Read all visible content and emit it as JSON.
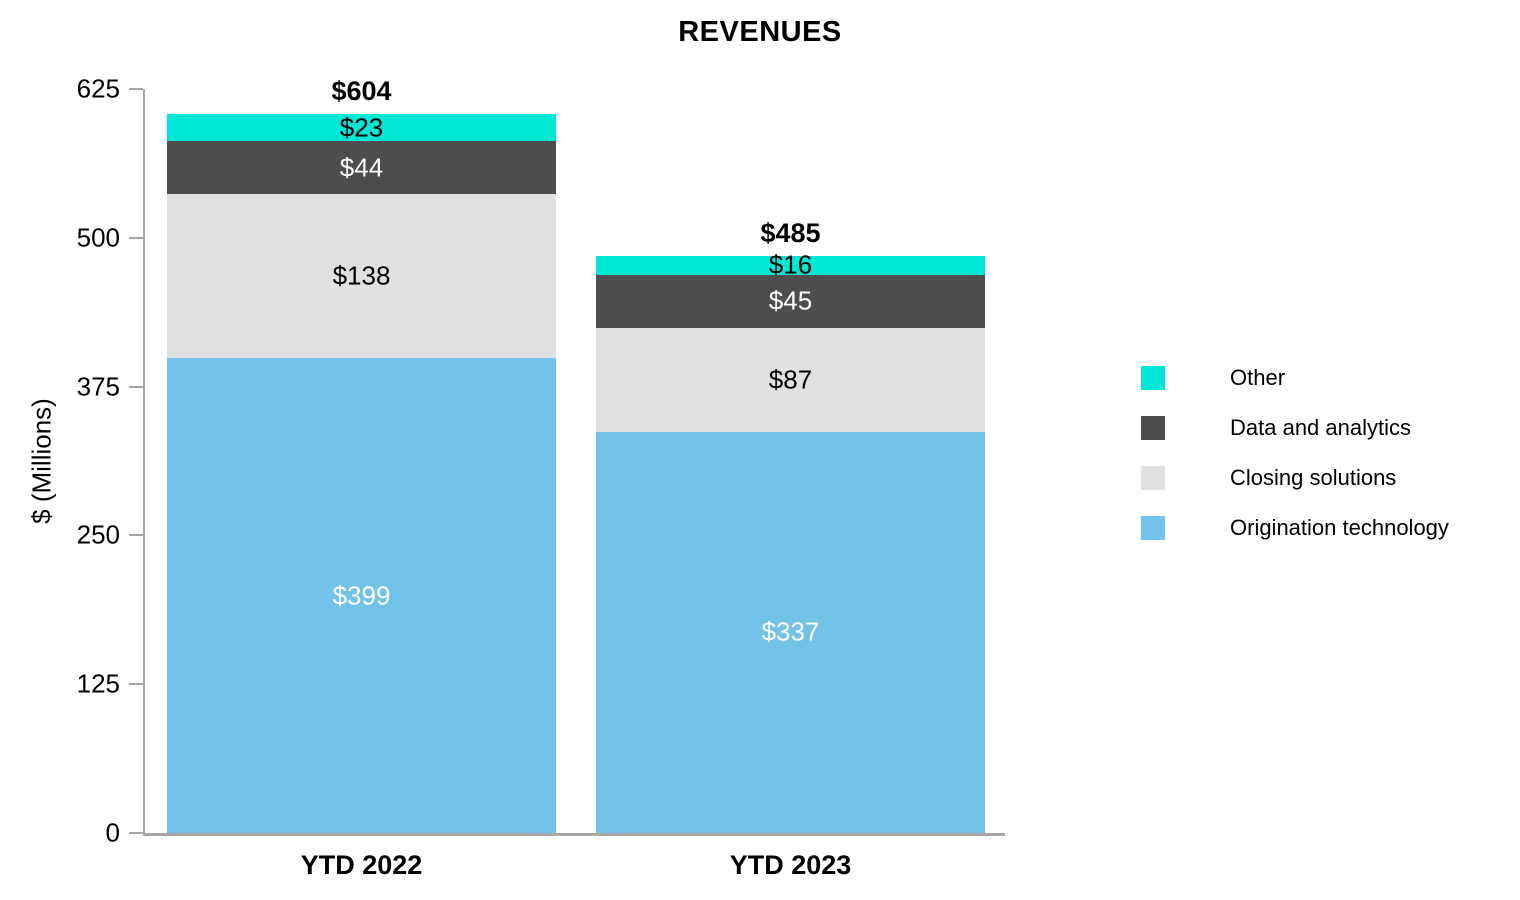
{
  "chart_data": {
    "type": "bar",
    "stacked": true,
    "title": "REVENUES",
    "ylabel": "$ (Millions)",
    "value_prefix": "$",
    "ylim": [
      0,
      625
    ],
    "yticks": [
      0,
      125,
      250,
      375,
      500,
      625
    ],
    "grid": false,
    "legend_position": "right",
    "axis_color": "#a6a6a6",
    "categories": [
      "YTD 2022",
      "YTD 2023"
    ],
    "series": [
      {
        "name": "Origination technology",
        "values": [
          399,
          337
        ],
        "color": "#73C3E8",
        "label_color": "#FFFFFF"
      },
      {
        "name": "Closing solutions",
        "values": [
          138,
          87
        ],
        "color": "#E0E0E0",
        "label_color": "#000000"
      },
      {
        "name": "Data and analytics",
        "values": [
          44,
          45
        ],
        "color": "#4D4D4D",
        "label_color": "#FFFFFF"
      },
      {
        "name": "Other",
        "values": [
          23,
          16
        ],
        "color": "#00E8D5",
        "label_color": "#000000"
      }
    ],
    "totals": [
      604,
      485
    ],
    "legend": [
      "Other",
      "Data and analytics",
      "Closing solutions",
      "Origination technology"
    ]
  }
}
